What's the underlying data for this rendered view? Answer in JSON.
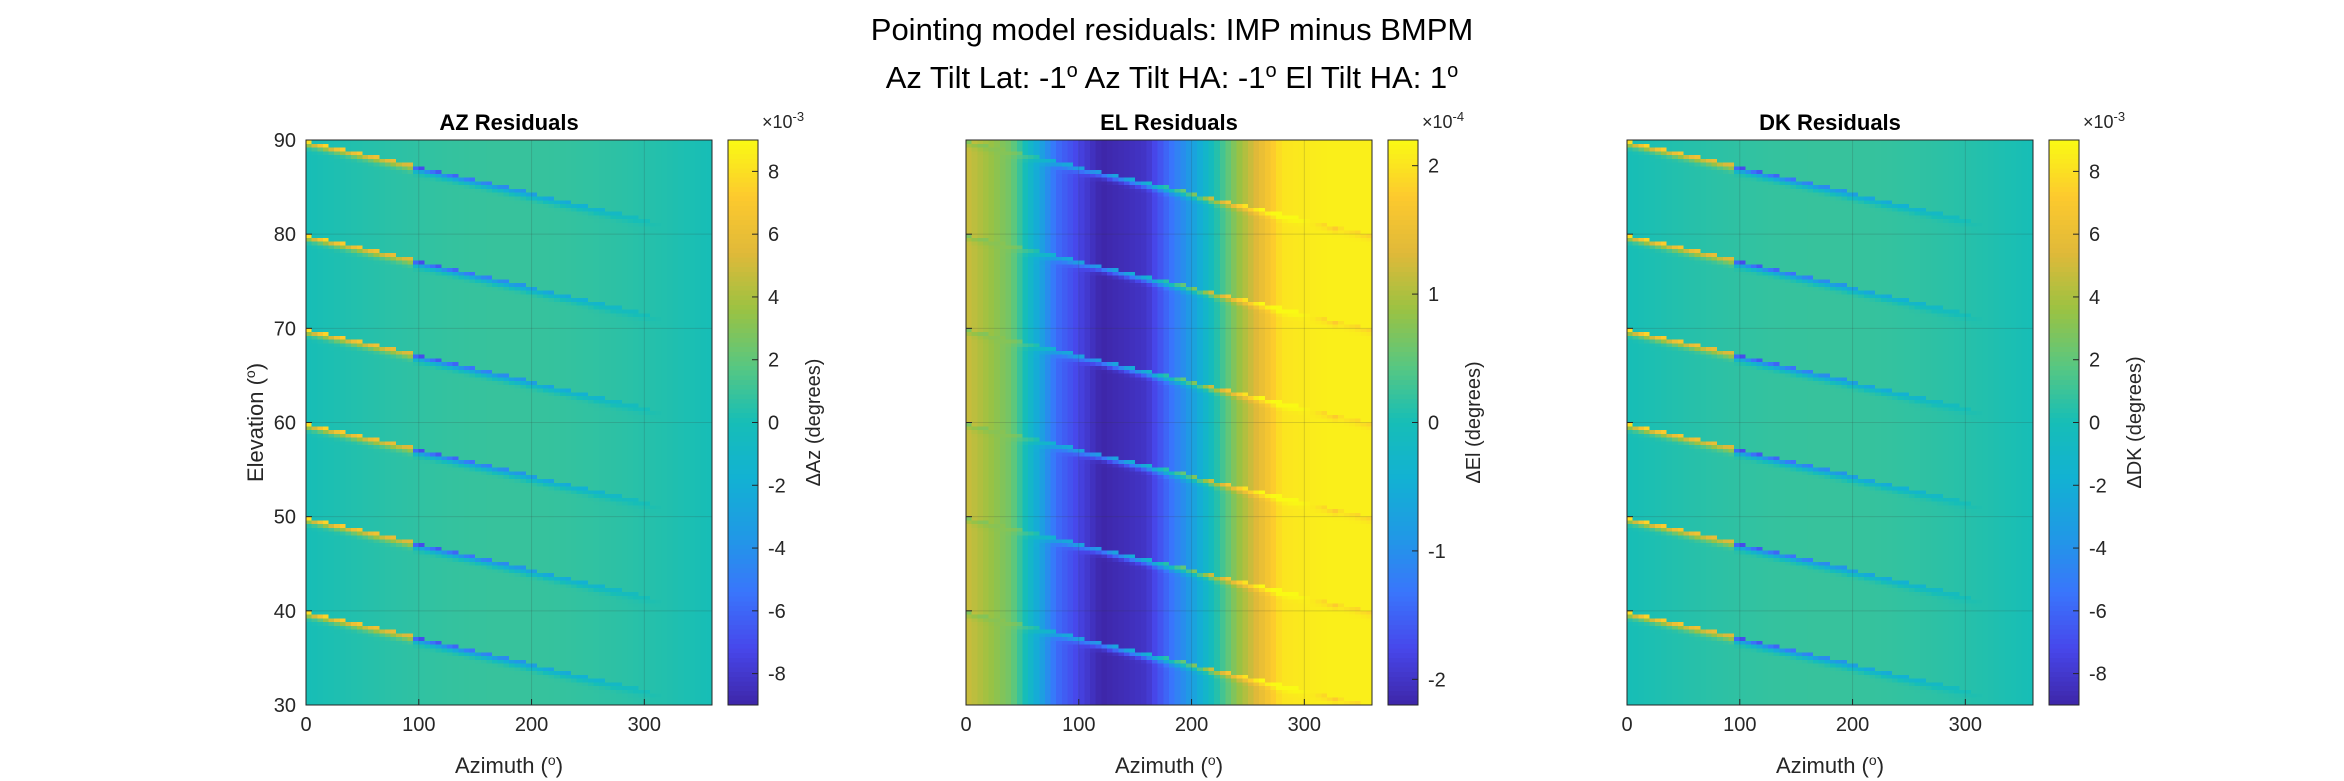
{
  "figure": {
    "title_line1": "Pointing model residuals: IMP minus BMPM",
    "title_line2_parts": [
      "Az Tilt Lat: -1",
      "o",
      " Az Tilt HA: -1",
      "o",
      " El Tilt HA: 1",
      "o"
    ]
  },
  "chart_data": [
    {
      "type": "heatmap",
      "title": "AZ Residuals",
      "xlabel": "Azimuth",
      "xlabel_unit_superscript": "o",
      "ylabel": "Elevation",
      "ylabel_unit_superscript": "o",
      "show_ylabel": true,
      "xlim": [
        0,
        360
      ],
      "ylim": [
        30,
        90
      ],
      "xticks": [
        0,
        100,
        200,
        300
      ],
      "yticks": [
        30,
        40,
        50,
        60,
        70,
        80,
        90
      ],
      "show_yticklabels": true,
      "grid": true,
      "colormap": "parula",
      "pattern": "az",
      "stripe_start_elevations": [
        40,
        50,
        60,
        70,
        80,
        90
      ],
      "stripe_slope_deg_el_per_deg_az": -0.028,
      "stripe_sign_flip_az": 95,
      "background_value": 0.0,
      "colorbar": {
        "label": "ΔAz (degrees)",
        "exponent_label": "×10",
        "exponent": "-3",
        "range": [
          -9,
          9
        ],
        "ticks": [
          -8,
          -6,
          -4,
          -2,
          0,
          2,
          4,
          6,
          8
        ]
      }
    },
    {
      "type": "heatmap",
      "title": "EL Residuals",
      "xlabel": "Azimuth",
      "xlabel_unit_superscript": "o",
      "ylabel": "",
      "show_ylabel": false,
      "xlim": [
        0,
        360
      ],
      "ylim": [
        30,
        90
      ],
      "xticks": [
        0,
        100,
        200,
        300
      ],
      "yticks": [
        30,
        40,
        50,
        60,
        70,
        80,
        90
      ],
      "show_yticklabels": false,
      "grid": true,
      "colormap": "parula",
      "pattern": "el",
      "stripe_start_elevations": [
        40,
        50,
        60,
        70,
        80,
        90
      ],
      "stripe_slope_deg_el_per_deg_az": -0.028,
      "background_profile_az": [
        0,
        40,
        80,
        120,
        160,
        200,
        240,
        280,
        320,
        360
      ],
      "background_profile_value": [
        1.2,
        0.6,
        -1.4,
        -2.2,
        -2.0,
        -0.8,
        0.8,
        2.0,
        2.1,
        2.1
      ],
      "colorbar": {
        "label": "ΔEl (degrees)",
        "exponent_label": "×10",
        "exponent": "-4",
        "range": [
          -2.2,
          2.2
        ],
        "ticks": [
          -2,
          -1,
          0,
          1,
          2
        ]
      }
    },
    {
      "type": "heatmap",
      "title": "DK Residuals",
      "xlabel": "Azimuth",
      "xlabel_unit_superscript": "o",
      "ylabel": "",
      "show_ylabel": false,
      "xlim": [
        0,
        360
      ],
      "ylim": [
        30,
        90
      ],
      "xticks": [
        0,
        100,
        200,
        300
      ],
      "yticks": [
        30,
        40,
        50,
        60,
        70,
        80,
        90
      ],
      "show_yticklabels": false,
      "grid": true,
      "colormap": "parula",
      "pattern": "az",
      "stripe_start_elevations": [
        40,
        50,
        60,
        70,
        80,
        90
      ],
      "stripe_slope_deg_el_per_deg_az": -0.028,
      "stripe_sign_flip_az": 95,
      "background_value": 0.0,
      "colorbar": {
        "label": "ΔDK (degrees)",
        "exponent_label": "×10",
        "exponent": "-3",
        "range": [
          -9,
          9
        ],
        "ticks": [
          -8,
          -6,
          -4,
          -2,
          0,
          2,
          4,
          6,
          8
        ]
      }
    }
  ]
}
